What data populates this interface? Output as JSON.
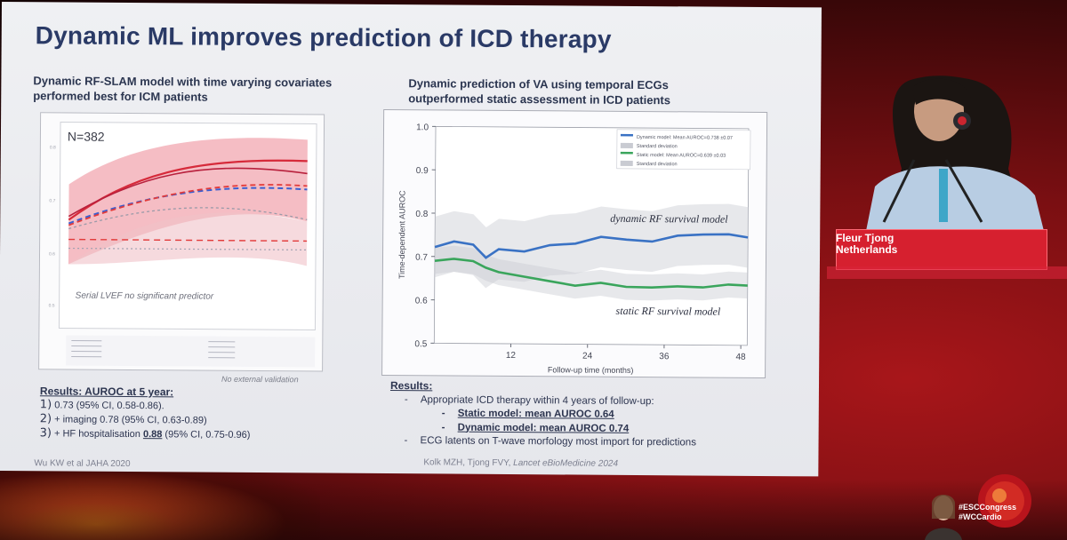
{
  "slide": {
    "title": "Dynamic ML improves prediction of ICD therapy",
    "left": {
      "subtitle_line1": "Dynamic RF-SLAM model with time varying covariates",
      "subtitle_line2": "performed best for ICM patients",
      "n_label": "N=382",
      "annotation": "Serial LVEF no significant predictor",
      "no_external": "No external validation",
      "results_head": "Results: AUROC at 5 year:",
      "results": [
        {
          "num": "1)",
          "text": "0.73 (95% CI, 0.58-0.86)."
        },
        {
          "num": "2)",
          "text": "+ imaging 0.78 (95% CI, 0.63-0.89)"
        },
        {
          "num": "3)",
          "text_pre": "+ HF hospitalisation ",
          "text_bold": "0.88",
          "text_post": " (95% CI, 0.75-0.96)"
        }
      ],
      "reference": "Wu KW et al JAHA 2020"
    },
    "right": {
      "subtitle_line1": "Dynamic prediction of VA using temporal ECGs",
      "subtitle_line2": "outperformed static assessment in ICD patients",
      "results_head": "Results:",
      "bullet1": "Appropriate ICD therapy within 4 years of follow-up:",
      "sub1": "Static model: mean AUROC 0.64",
      "sub2": "Dynamic model: mean AUROC 0.74",
      "bullet2": "ECG latents on T-wave morfology most import for predictions",
      "reference_pre": "Kolk MZH, Tjong FVY, ",
      "reference_italic": "Lancet eBioMedicine 2024"
    }
  },
  "chart_data": {
    "type": "line",
    "title": "",
    "xlabel": "Follow-up time (months)",
    "ylabel": "Time-dependent AUROC",
    "xticks": [
      "12",
      "24",
      "36",
      "48"
    ],
    "yticks": [
      "0.5",
      "0.6",
      "0.7",
      "0.8",
      "0.9",
      "1.0"
    ],
    "xlim": [
      0,
      49
    ],
    "ylim": [
      0.5,
      1.0
    ],
    "legend": [
      "Dynamic model: Mean AUROC=0.738 ±0.07",
      "Standard deviation",
      "Static model: Mean AUROC=0.639 ±0.03",
      "Standard deviation"
    ],
    "annotations": [
      "dynamic RF survival model",
      "static RF survival model"
    ],
    "x": [
      0,
      3,
      6,
      8,
      10,
      14,
      18,
      22,
      26,
      30,
      34,
      38,
      42,
      46,
      49
    ],
    "series": [
      {
        "name": "Dynamic model",
        "color": "#3a72c4",
        "values": [
          0.722,
          0.735,
          0.728,
          0.698,
          0.718,
          0.713,
          0.728,
          0.732,
          0.748,
          0.742,
          0.738,
          0.752,
          0.755,
          0.756,
          0.749
        ],
        "sd": 0.07
      },
      {
        "name": "Static model",
        "color": "#3aa55c",
        "values": [
          0.69,
          0.695,
          0.69,
          0.675,
          0.665,
          0.655,
          0.645,
          0.635,
          0.642,
          0.633,
          0.632,
          0.635,
          0.633,
          0.64,
          0.638
        ],
        "sd": 0.03
      }
    ]
  },
  "speaker": {
    "name": "Fleur Tjong",
    "country": "Netherlands"
  },
  "event": {
    "hashtag1": "#ESCCongress",
    "hashtag2": "#WCCardio"
  }
}
